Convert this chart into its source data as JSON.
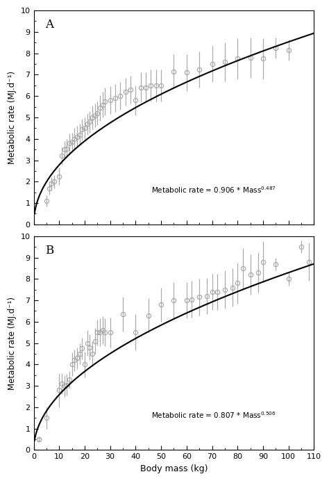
{
  "panel_A": {
    "label": "A",
    "coeff": 0.906,
    "exponent": 0.487,
    "equation": "Metabolic rate = 0.906 * Mass",
    "exp_text": "0.487",
    "data_x": [
      5,
      6,
      7,
      8,
      10,
      11,
      12,
      13,
      14,
      15,
      16,
      17,
      18,
      19,
      20,
      21,
      22,
      23,
      24,
      25,
      26,
      27,
      28,
      30,
      32,
      34,
      36,
      38,
      40,
      42,
      44,
      46,
      48,
      50,
      55,
      60,
      65,
      70,
      75,
      80,
      85,
      90,
      95,
      100
    ],
    "data_y": [
      1.1,
      1.7,
      1.9,
      2.0,
      2.25,
      3.2,
      3.5,
      3.55,
      3.8,
      3.85,
      4.0,
      4.1,
      4.2,
      4.45,
      4.5,
      4.7,
      4.8,
      5.0,
      5.1,
      5.2,
      5.45,
      5.6,
      5.75,
      5.8,
      5.9,
      6.0,
      6.2,
      6.3,
      5.8,
      6.4,
      6.4,
      6.5,
      6.5,
      6.5,
      7.15,
      7.1,
      7.25,
      7.5,
      7.6,
      7.75,
      7.8,
      7.75,
      8.25,
      8.15
    ],
    "data_yerr": [
      0.25,
      0.3,
      0.3,
      0.3,
      0.4,
      0.4,
      0.4,
      0.45,
      0.45,
      0.45,
      0.5,
      0.5,
      0.5,
      0.5,
      0.5,
      0.5,
      0.5,
      0.55,
      0.55,
      0.55,
      0.6,
      0.6,
      0.65,
      0.65,
      0.65,
      0.65,
      0.65,
      0.65,
      0.7,
      0.7,
      0.7,
      0.75,
      0.75,
      0.75,
      0.8,
      0.85,
      0.85,
      0.85,
      0.9,
      0.95,
      0.95,
      0.95,
      0.5,
      0.5
    ]
  },
  "panel_B": {
    "label": "B",
    "coeff": 0.807,
    "exponent": 0.506,
    "equation": "Metabolic rate = 0.807 * Mass",
    "exp_text": "0.506",
    "data_x": [
      2,
      2,
      5,
      10,
      11,
      12,
      13,
      14,
      15,
      16,
      17,
      18,
      19,
      20,
      21,
      22,
      23,
      24,
      25,
      26,
      27,
      28,
      30,
      35,
      40,
      45,
      50,
      55,
      60,
      62,
      65,
      68,
      70,
      72,
      75,
      78,
      80,
      82,
      85,
      88,
      90,
      95,
      100,
      105,
      108
    ],
    "data_y": [
      0.5,
      0.5,
      1.5,
      2.8,
      3.1,
      3.0,
      3.05,
      3.3,
      4.0,
      4.2,
      4.3,
      4.5,
      4.75,
      4.0,
      5.0,
      4.8,
      4.5,
      5.1,
      5.5,
      5.5,
      5.6,
      5.5,
      5.5,
      6.35,
      5.5,
      6.3,
      6.8,
      7.0,
      7.0,
      7.05,
      7.15,
      7.2,
      7.4,
      7.4,
      7.5,
      7.6,
      7.8,
      8.5,
      8.2,
      8.3,
      8.8,
      8.7,
      8.0,
      9.5,
      8.8
    ],
    "data_yerr": [
      0.1,
      0.1,
      0.5,
      0.8,
      0.5,
      0.5,
      0.5,
      0.4,
      0.55,
      0.5,
      0.5,
      0.5,
      0.5,
      0.6,
      0.6,
      0.6,
      0.6,
      0.6,
      0.6,
      0.65,
      0.65,
      0.65,
      0.7,
      0.8,
      0.85,
      0.8,
      0.8,
      0.85,
      0.85,
      0.85,
      0.85,
      0.85,
      0.85,
      0.85,
      0.9,
      0.9,
      0.95,
      0.95,
      0.95,
      0.95,
      0.95,
      0.3,
      0.3,
      0.3,
      0.9
    ]
  },
  "xlim": [
    0,
    110
  ],
  "ylim": [
    0,
    10
  ],
  "xlabel": "Body mass (kg)",
  "ylabel": "Metabolic rate (MJ.d⁻¹)",
  "curve_color": "#000000",
  "data_color": "#aaaaaa",
  "background_color": "#ffffff",
  "figsize": [
    4.74,
    6.92
  ],
  "dpi": 100
}
